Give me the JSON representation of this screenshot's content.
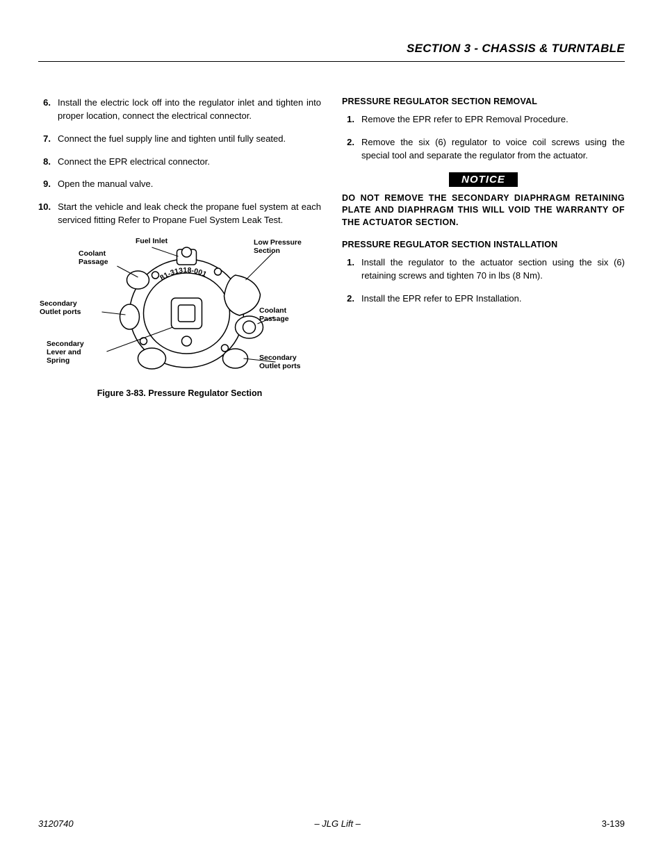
{
  "header": {
    "section_title": "SECTION 3 - CHASSIS & TURNTABLE"
  },
  "left": {
    "steps": [
      {
        "n": "6.",
        "t": "Install the electric lock off into the regulator inlet and tighten into proper location, connect the electrical connector."
      },
      {
        "n": "7.",
        "t": "Connect the fuel supply line and tighten until fully seated."
      },
      {
        "n": "8.",
        "t": "Connect the EPR electrical connector."
      },
      {
        "n": "9.",
        "t": "Open the manual valve."
      },
      {
        "n": "10.",
        "t": "Start the vehicle and leak check the propane fuel system at each serviced fitting Refer to Propane Fuel System Leak Test."
      }
    ],
    "figure": {
      "caption": "Figure 3-83.  Pressure Regulator Section",
      "part_label": "81-31318-001",
      "callouts": {
        "fuel_inlet": "Fuel Inlet",
        "coolant_passage_l": "Coolant\nPassage",
        "low_pressure": "Low Pressure\nSection",
        "secondary_outlet_l": "Secondary\nOutlet ports",
        "coolant_passage_r": "Coolant\nPassage",
        "secondary_lever": "Secondary\nLever and\nSpring",
        "secondary_outlet_r": "Secondary\nOutlet ports"
      },
      "colors": {
        "stroke": "#000000",
        "fill": "#ffffff"
      }
    }
  },
  "right": {
    "removal_head": "PRESSURE REGULATOR SECTION REMOVAL",
    "removal_steps": [
      {
        "n": "1.",
        "t": "Remove the EPR refer to EPR Removal Procedure."
      },
      {
        "n": "2.",
        "t": "Remove the six (6) regulator to voice coil screws using the special tool and separate the regulator from the actuator."
      }
    ],
    "notice_label": "NOTICE",
    "notice_text": "DO NOT REMOVE THE SECONDARY DIAPHRAGM RETAINING PLATE AND DIAPHRAGM THIS WILL VOID THE WARRANTY OF THE ACTUATOR SECTION.",
    "install_head": "PRESSURE REGULATOR SECTION INSTALLATION",
    "install_steps": [
      {
        "n": "1.",
        "t": "Install the regulator to the actuator section using the six (6) retaining screws and tighten 70 in lbs (8 Nm)."
      },
      {
        "n": "2.",
        "t": "Install the EPR refer to EPR Installation."
      }
    ]
  },
  "footer": {
    "docnum": "3120740",
    "brand": "– JLG Lift –",
    "pagenum": "3-139"
  }
}
